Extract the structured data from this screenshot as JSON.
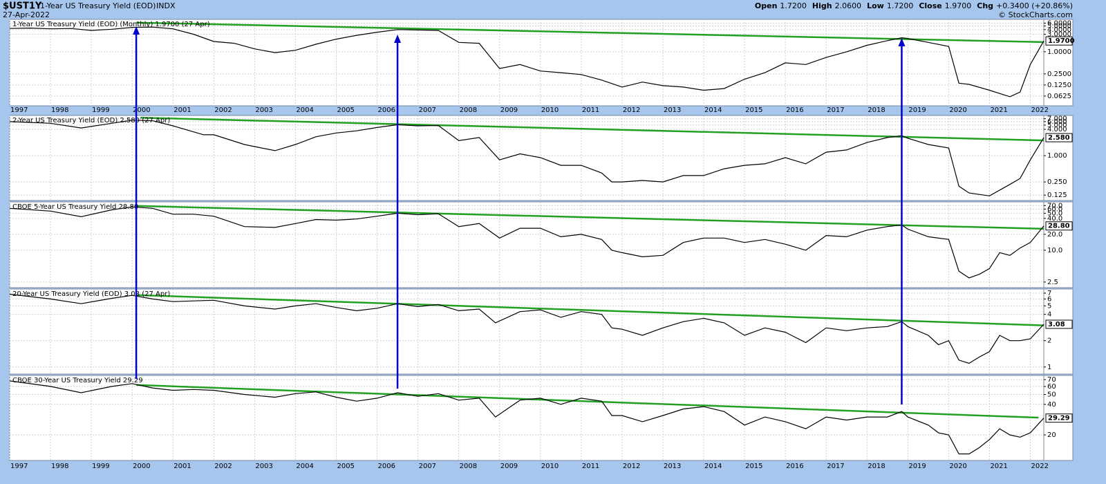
{
  "header": {
    "symbol": "$UST1Y",
    "name": "1-Year US Treasury Yield (EOD)",
    "exchange": "INDX",
    "date": "27-Apr-2022",
    "quote": [
      {
        "label": "Open",
        "value": "1.7200"
      },
      {
        "label": "High",
        "value": "2.0600"
      },
      {
        "label": "Low",
        "value": "1.7200"
      },
      {
        "label": "Close",
        "value": "1.9700"
      },
      {
        "label": "Chg",
        "value": "+0.3400 (+20.86%)"
      }
    ],
    "credit": "© StockCharts.com"
  },
  "annotations": {
    "arrows": {
      "x": [
        2000.1,
        2006.5,
        2018.85
      ],
      "color": "#0000cc"
    }
  },
  "chart_data": [
    {
      "type": "line",
      "title": "1-Year US Treasury Yield (EOD) (Monthly) 1.9700 (27 Apr)",
      "log_scale": true,
      "grid": true,
      "color": "#000000",
      "xlim": [
        1997,
        2022.33
      ],
      "xticks": [
        1997,
        1998,
        1999,
        2000,
        2001,
        2002,
        2003,
        2004,
        2005,
        2006,
        2007,
        2008,
        2009,
        2010,
        2011,
        2012,
        2013,
        2014,
        2015,
        2016,
        2017,
        2018,
        2019,
        2020,
        2021,
        2022
      ],
      "ylim": [
        0.034,
        7.6
      ],
      "yticks": [
        {
          "value": 6,
          "label": "6.0000"
        },
        {
          "value": 5,
          "label": "5.0000"
        },
        {
          "value": 4,
          "label": "4.0000"
        },
        {
          "value": 3,
          "label": "3.0000"
        },
        {
          "value": 1,
          "label": "1.0000"
        },
        {
          "value": 0.25,
          "label": "0.2500"
        },
        {
          "value": 0.125,
          "label": "0.1250"
        },
        {
          "value": 0.0625,
          "label": "0.0625"
        }
      ],
      "last_value_label": "1.9700",
      "x": [
        1997,
        1997.5,
        1998,
        1998.5,
        1999,
        1999.5,
        2000,
        2000.5,
        2001,
        2001.5,
        2002,
        2002.5,
        2003,
        2003.5,
        2004,
        2004.5,
        2005,
        2005.5,
        2006,
        2006.5,
        2007,
        2007.5,
        2008,
        2008.5,
        2009,
        2009.5,
        2010,
        2010.5,
        2011,
        2011.5,
        2012,
        2012.5,
        2013,
        2013.5,
        2014,
        2014.5,
        2015,
        2015.5,
        2016,
        2016.5,
        2017,
        2017.5,
        2018,
        2018.5,
        2018.85,
        2019,
        2019.5,
        2020,
        2020.25,
        2020.5,
        2021,
        2021.5,
        2021.75,
        2022,
        2022.33
      ],
      "values": [
        4.3,
        4.4,
        4.2,
        4.3,
        3.8,
        4.1,
        4.6,
        4.7,
        4.2,
        3.0,
        1.9,
        1.7,
        1.2,
        0.95,
        1.1,
        1.6,
        2.2,
        2.8,
        3.4,
        4.0,
        3.9,
        3.8,
        1.8,
        1.7,
        0.35,
        0.45,
        0.3,
        0.27,
        0.24,
        0.17,
        0.11,
        0.15,
        0.12,
        0.11,
        0.09,
        0.1,
        0.18,
        0.27,
        0.5,
        0.45,
        0.7,
        1.0,
        1.5,
        2.0,
        2.4,
        2.3,
        1.8,
        1.4,
        0.14,
        0.13,
        0.09,
        0.06,
        0.08,
        0.45,
        1.97
      ],
      "trendline": {
        "x": [
          2000.1,
          2022.33
        ],
        "values": [
          6.2,
          1.83
        ],
        "color": "#22a022"
      }
    },
    {
      "type": "line",
      "title": "2-Year US Treasury Yield (EOD) 2.580 (27 Apr)",
      "log_scale": true,
      "grid": true,
      "color": "#000000",
      "xlim": [
        1997,
        2022.33
      ],
      "ylim": [
        0.094,
        8.3
      ],
      "yticks": [
        {
          "value": 7,
          "label": "7.000"
        },
        {
          "value": 6,
          "label": "6.000"
        },
        {
          "value": 5,
          "label": "5.000"
        },
        {
          "value": 4,
          "label": "4.000"
        },
        {
          "value": 1,
          "label": "1.000"
        },
        {
          "value": 0.25,
          "label": "0.250"
        },
        {
          "value": 0.125,
          "label": "0.125"
        }
      ],
      "last_value_label": "2.580",
      "x": [
        1997,
        1998,
        1998.75,
        1999.5,
        2000,
        2000.5,
        2001,
        2001.75,
        2002,
        2002.75,
        2003.5,
        2004,
        2004.5,
        2005,
        2005.5,
        2006,
        2006.5,
        2007,
        2007.5,
        2008,
        2008.5,
        2009,
        2009.5,
        2010,
        2010.5,
        2011,
        2011.5,
        2011.75,
        2012,
        2012.5,
        2013,
        2013.5,
        2014,
        2014.5,
        2015,
        2015.5,
        2016,
        2016.5,
        2017,
        2017.5,
        2018,
        2018.5,
        2018.85,
        2019,
        2019.5,
        2020,
        2020.25,
        2020.5,
        2021,
        2021.5,
        2021.75,
        2022,
        2022.33
      ],
      "values": [
        6.0,
        5.5,
        4.3,
        5.5,
        6.5,
        6.3,
        4.8,
        3.0,
        3.0,
        1.8,
        1.3,
        1.8,
        2.7,
        3.3,
        3.7,
        4.4,
        5.1,
        4.8,
        4.9,
        2.2,
        2.6,
        0.8,
        1.1,
        0.9,
        0.6,
        0.6,
        0.4,
        0.25,
        0.25,
        0.27,
        0.25,
        0.35,
        0.35,
        0.5,
        0.6,
        0.65,
        0.9,
        0.65,
        1.2,
        1.35,
        2.0,
        2.6,
        2.85,
        2.5,
        1.8,
        1.5,
        0.2,
        0.14,
        0.12,
        0.22,
        0.3,
        0.8,
        2.58
      ],
      "trendline": {
        "x": [
          2000.2,
          2022.33
        ],
        "values": [
          7.4,
          2.23
        ],
        "color": "#22a022"
      }
    },
    {
      "type": "line",
      "title": "CBOE 5-Year US Treasury Yield 28.80",
      "log_scale": true,
      "grid": true,
      "color": "#000000",
      "xlim": [
        1997,
        2022.33
      ],
      "ylim": [
        1.96,
        82
      ],
      "yticks": [
        {
          "value": 70,
          "label": "70.0"
        },
        {
          "value": 60,
          "label": "60.0"
        },
        {
          "value": 50,
          "label": "50.0"
        },
        {
          "value": 40,
          "label": "40.0"
        },
        {
          "value": 20,
          "label": "20.0"
        },
        {
          "value": 10,
          "label": "10.0"
        },
        2.5
      ],
      "last_value_label": "28.80",
      "x": [
        1997,
        1998,
        1998.75,
        1999.5,
        2000,
        2000.5,
        2001,
        2001.5,
        2002,
        2002.75,
        2003.5,
        2004,
        2004.5,
        2005,
        2005.5,
        2006,
        2006.5,
        2007,
        2007.5,
        2008,
        2008.5,
        2009,
        2009.5,
        2010,
        2010.5,
        2011,
        2011.5,
        2011.75,
        2012,
        2012.5,
        2013,
        2013.5,
        2014,
        2014.5,
        2015,
        2015.5,
        2016,
        2016.5,
        2017,
        2017.5,
        2018,
        2018.5,
        2018.85,
        2019,
        2019.5,
        2020,
        2020.25,
        2020.5,
        2020.75,
        2021,
        2021.25,
        2021.5,
        2021.75,
        2022,
        2022.33
      ],
      "values": [
        62,
        55,
        43,
        58,
        66,
        62,
        48,
        48,
        44,
        28,
        27,
        32,
        38,
        37,
        39,
        44,
        50,
        47,
        49,
        28,
        32,
        17,
        26,
        26,
        18,
        20,
        16,
        10,
        9,
        7.5,
        8,
        14,
        17,
        17,
        14,
        16,
        13,
        10,
        19,
        18,
        24,
        28,
        30,
        25,
        18,
        16,
        4,
        3,
        3.5,
        4.5,
        9,
        8,
        11,
        14,
        28.8
      ],
      "trendline": {
        "x": [
          2000.1,
          2022.33
        ],
        "values": [
          68.9,
          25.4
        ],
        "color": "#22a022"
      }
    },
    {
      "type": "line",
      "title": "20-Year US Treasury Yield (EOD) 3.08 (27 Apr)",
      "log_scale": true,
      "grid": true,
      "color": "#000000",
      "xlim": [
        1997,
        2022.33
      ],
      "ylim": [
        0.83,
        7.8
      ],
      "yticks": [
        7,
        6,
        5,
        4,
        2,
        1
      ],
      "last_value_label": "3.08",
      "x": [
        1997,
        1998,
        1998.75,
        1999.5,
        2000,
        2000.5,
        2001,
        2001.5,
        2002,
        2002.75,
        2003.5,
        2004,
        2004.5,
        2005,
        2005.5,
        2006,
        2006.5,
        2007,
        2007.5,
        2008,
        2008.5,
        2008.9,
        2009.5,
        2010,
        2010.5,
        2011,
        2011.5,
        2011.75,
        2012,
        2012.5,
        2013,
        2013.5,
        2014,
        2014.5,
        2015,
        2015.5,
        2016,
        2016.5,
        2017,
        2017.5,
        2018,
        2018.5,
        2018.85,
        2019,
        2019.5,
        2019.75,
        2020,
        2020.25,
        2020.5,
        2020.75,
        2021,
        2021.25,
        2021.5,
        2021.75,
        2022,
        2022.33
      ],
      "values": [
        6.8,
        6.0,
        5.3,
        6.1,
        6.6,
        6.0,
        5.6,
        5.7,
        5.8,
        5.0,
        4.6,
        5.0,
        5.3,
        4.8,
        4.4,
        4.7,
        5.3,
        4.9,
        5.2,
        4.4,
        4.6,
        3.2,
        4.3,
        4.5,
        3.7,
        4.3,
        4.0,
        2.8,
        2.7,
        2.3,
        2.8,
        3.3,
        3.6,
        3.2,
        2.3,
        2.8,
        2.5,
        1.9,
        2.8,
        2.6,
        2.8,
        2.9,
        3.3,
        2.9,
        2.3,
        1.8,
        2.0,
        1.2,
        1.1,
        1.3,
        1.5,
        2.3,
        2.0,
        2.0,
        2.1,
        3.08
      ],
      "trendline": {
        "x": [
          2000.1,
          2022.33
        ],
        "values": [
          6.66,
          2.99
        ],
        "color": "#22a022"
      }
    },
    {
      "type": "line",
      "title": "CBOE 30-Year US Treasury Yield 29.29",
      "log_scale": true,
      "grid": true,
      "color": "#000000",
      "xlim": [
        1997,
        2022.33
      ],
      "xticks": [
        1997,
        1998,
        1999,
        2000,
        2001,
        2002,
        2003,
        2004,
        2005,
        2006,
        2007,
        2008,
        2009,
        2010,
        2011,
        2012,
        2013,
        2014,
        2015,
        2016,
        2017,
        2018,
        2019,
        2020,
        2021,
        2022
      ],
      "ylim": [
        11.2,
        77
      ],
      "yticks": [
        70,
        60,
        50,
        40,
        20
      ],
      "last_value_label": "29.29",
      "x": [
        1997,
        1998,
        1998.75,
        1999.5,
        2000,
        2000.5,
        2001,
        2001.5,
        2002,
        2002.75,
        2003.5,
        2004,
        2004.5,
        2005,
        2005.5,
        2006,
        2006.5,
        2007,
        2007.5,
        2008,
        2008.5,
        2008.9,
        2009.5,
        2010,
        2010.5,
        2011,
        2011.5,
        2011.75,
        2012,
        2012.5,
        2013,
        2013.5,
        2014,
        2014.5,
        2015,
        2015.5,
        2016,
        2016.5,
        2017,
        2017.5,
        2018,
        2018.5,
        2018.85,
        2019,
        2019.5,
        2019.75,
        2020,
        2020.25,
        2020.5,
        2020.75,
        2021,
        2021.25,
        2021.5,
        2021.75,
        2022,
        2022.33
      ],
      "values": [
        68,
        60,
        52,
        60,
        64,
        58,
        55,
        56,
        55,
        50,
        47,
        51,
        53,
        47,
        43,
        46,
        52,
        48,
        51,
        44,
        46,
        30,
        44,
        46,
        40,
        46,
        43,
        31,
        31,
        27,
        31,
        36,
        38,
        34,
        25,
        30,
        27,
        23,
        30,
        28,
        30,
        30,
        34,
        30,
        25,
        21,
        20,
        13,
        13,
        15,
        18,
        23,
        20,
        19,
        21,
        29.29
      ],
      "trendline": {
        "x": [
          2000.1,
          2022.2
        ],
        "values": [
          62,
          29.6
        ],
        "color": "#22a022"
      }
    }
  ]
}
